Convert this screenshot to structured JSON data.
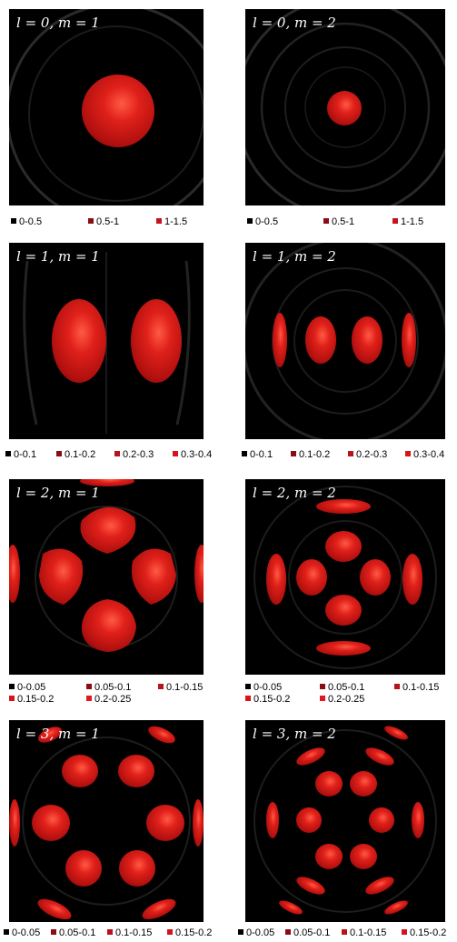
{
  "colors": {
    "background": "#000000",
    "lobe": "#c91515",
    "lobe_highlight": "#ff4a3a",
    "ring": "#6a6a6a",
    "legend": [
      "#000000",
      "#8b0c12",
      "#b9121b",
      "#d5141d",
      "#e3161e"
    ]
  },
  "panels": [
    {
      "id": "l0m1",
      "label": "l = 0, m = 1"
    },
    {
      "id": "l0m2",
      "label": "l = 0, m = 2"
    },
    {
      "id": "l1m1",
      "label": "l = 1, m = 1"
    },
    {
      "id": "l1m2",
      "label": "l = 1, m = 2"
    },
    {
      "id": "l2m1",
      "label": "l = 2, m = 1"
    },
    {
      "id": "l2m2",
      "label": "l = 2, m = 2"
    },
    {
      "id": "l3m1",
      "label": "l = 3, m = 1"
    },
    {
      "id": "l3m2",
      "label": "l = 3, m = 2"
    }
  ],
  "legends": [
    {
      "entries": [
        "0-0.5",
        "0.5-1",
        "1-1.5"
      ]
    },
    {
      "entries": [
        "0-0.5",
        "0.5-1",
        "1-1.5"
      ]
    },
    {
      "entries": [
        "0-0.1",
        "0.1-0.2",
        "0.2-0.3",
        "0.3-0.4"
      ]
    },
    {
      "entries": [
        "0-0.1",
        "0.1-0.2",
        "0.2-0.3",
        "0.3-0.4"
      ]
    },
    {
      "entries": [
        "0-0.05",
        "0.05-0.1",
        "0.1-0.15",
        "0.15-0.2",
        "0.2-0.25"
      ]
    },
    {
      "entries": [
        "0-0.05",
        "0.05-0.1",
        "0.1-0.15",
        "0.15-0.2",
        "0.2-0.25"
      ]
    },
    {
      "entries": [
        "0-0.05",
        "0.05-0.1",
        "0.1-0.15",
        "0.15-0.2"
      ]
    },
    {
      "entries": [
        "0-0.05",
        "0.05-0.1",
        "0.1-0.15",
        "0.15-0.2"
      ]
    }
  ]
}
